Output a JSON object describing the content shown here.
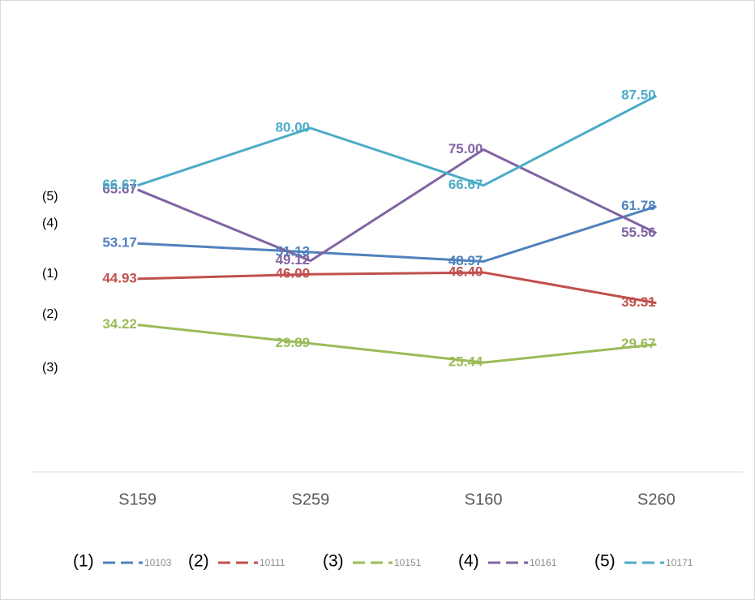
{
  "chart_data": {
    "type": "line",
    "categories": [
      "S159",
      "S259",
      "S160",
      "S260"
    ],
    "ylim": [
      0,
      100
    ],
    "side_labels": [
      "(5)",
      "(4)",
      "(1)",
      "(2)",
      "(3)"
    ],
    "series": [
      {
        "tag": "(1)",
        "name": "10103",
        "color": "#4f81bd",
        "values": [
          53.17,
          51.13,
          48.97,
          61.78
        ],
        "value_labels": [
          "53.17",
          "51.13",
          "48.97",
          "61.78"
        ]
      },
      {
        "tag": "(2)",
        "name": "10111",
        "color": "#c0504d",
        "values": [
          44.93,
          46.0,
          46.4,
          39.31
        ],
        "value_labels": [
          "44.93",
          "46.00",
          "46.40",
          "39.31"
        ]
      },
      {
        "tag": "(3)",
        "name": "10151",
        "color": "#9bbb59",
        "values": [
          34.22,
          29.89,
          25.44,
          29.67
        ],
        "value_labels": [
          "34.22",
          "29.89",
          "25.44",
          "29.67"
        ]
      },
      {
        "tag": "(4)",
        "name": "10161",
        "color": "#8064a2",
        "values": [
          65.67,
          49.12,
          75.0,
          55.56
        ],
        "value_labels": [
          "65.67",
          "49.12",
          "75.00",
          "55.56"
        ]
      },
      {
        "tag": "(5)",
        "name": "10171",
        "color": "#4bacc6",
        "values": [
          66.67,
          80.0,
          66.67,
          87.5
        ],
        "value_labels": [
          "66.67",
          "80.00",
          "66.67",
          "87.50"
        ]
      }
    ]
  }
}
